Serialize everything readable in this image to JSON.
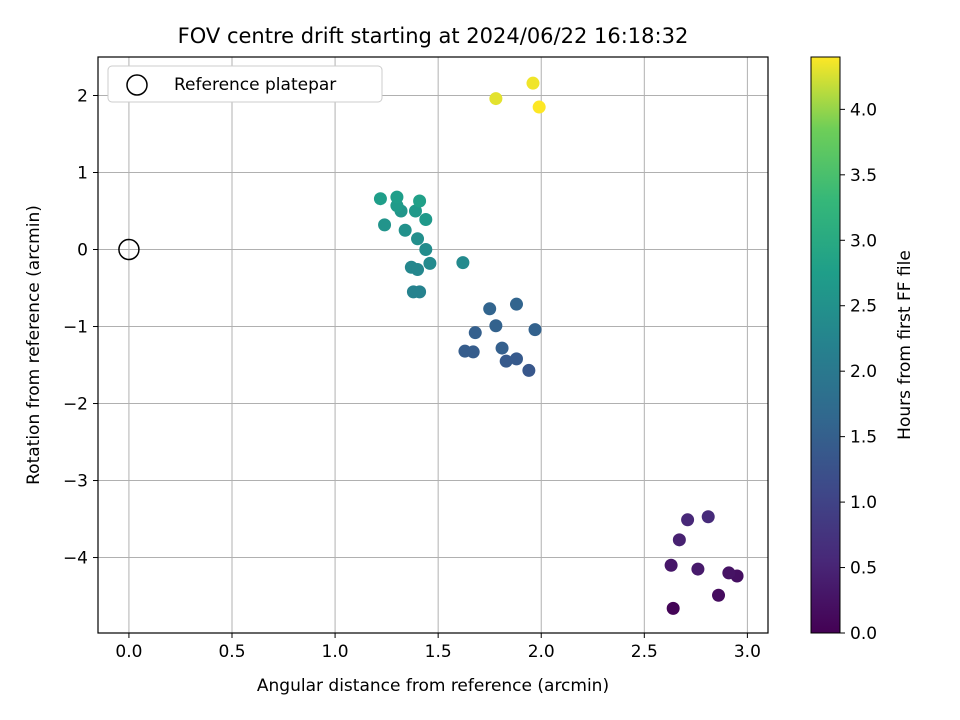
{
  "chart_data": {
    "type": "scatter",
    "title": "FOV centre drift starting at 2024/06/22 16:18:32",
    "xlabel": "Angular distance from reference (arcmin)",
    "ylabel": "Rotation from reference (arcmin)",
    "xlim": [
      -0.15,
      3.1
    ],
    "ylim": [
      -4.98,
      2.5
    ],
    "xticks": [
      0.0,
      0.5,
      1.0,
      1.5,
      2.0,
      2.5,
      3.0
    ],
    "xtick_labels": [
      "0.0",
      "0.5",
      "1.0",
      "1.5",
      "2.0",
      "2.5",
      "3.0"
    ],
    "yticks": [
      2,
      1,
      0,
      -1,
      -2,
      -3,
      -4
    ],
    "ytick_labels": [
      "2",
      "1",
      "0",
      "−1",
      "−2",
      "−3",
      "−4"
    ],
    "grid": true,
    "legend": {
      "placement": "upper-left",
      "entries": [
        "Reference platepar"
      ]
    },
    "reference_point": {
      "x": 0,
      "y": 0,
      "label": "Reference platepar"
    },
    "colorbar": {
      "label": "Hours from first FF file",
      "colormap": "viridis",
      "range": [
        0.0,
        4.4
      ],
      "ticks": [
        0.0,
        0.5,
        1.0,
        1.5,
        2.0,
        2.5,
        3.0,
        3.5,
        4.0
      ],
      "tick_labels": [
        "0.0",
        "0.5",
        "1.0",
        "1.5",
        "2.0",
        "2.5",
        "3.0",
        "3.5",
        "4.0"
      ]
    },
    "points": [
      {
        "x": 2.64,
        "y": -4.66,
        "hours": 0.05
      },
      {
        "x": 2.86,
        "y": -4.49,
        "hours": 0.15
      },
      {
        "x": 2.95,
        "y": -4.24,
        "hours": 0.2
      },
      {
        "x": 2.91,
        "y": -4.2,
        "hours": 0.25
      },
      {
        "x": 2.63,
        "y": -4.1,
        "hours": 0.3
      },
      {
        "x": 2.76,
        "y": -4.15,
        "hours": 0.35
      },
      {
        "x": 2.67,
        "y": -3.77,
        "hours": 0.45
      },
      {
        "x": 2.71,
        "y": -3.51,
        "hours": 0.55
      },
      {
        "x": 2.81,
        "y": -3.47,
        "hours": 0.6
      },
      {
        "x": 1.94,
        "y": -1.57,
        "hours": 1.35
      },
      {
        "x": 1.83,
        "y": -1.45,
        "hours": 1.4
      },
      {
        "x": 1.88,
        "y": -1.42,
        "hours": 1.4
      },
      {
        "x": 1.63,
        "y": -1.32,
        "hours": 1.45
      },
      {
        "x": 1.67,
        "y": -1.33,
        "hours": 1.45
      },
      {
        "x": 1.81,
        "y": -1.28,
        "hours": 1.5
      },
      {
        "x": 1.68,
        "y": -1.08,
        "hours": 1.5
      },
      {
        "x": 1.78,
        "y": -0.99,
        "hours": 1.55
      },
      {
        "x": 1.97,
        "y": -1.04,
        "hours": 1.55
      },
      {
        "x": 1.75,
        "y": -0.77,
        "hours": 1.6
      },
      {
        "x": 1.88,
        "y": -0.71,
        "hours": 1.6
      },
      {
        "x": 1.38,
        "y": -0.55,
        "hours": 2.2
      },
      {
        "x": 1.41,
        "y": -0.55,
        "hours": 2.2
      },
      {
        "x": 1.37,
        "y": -0.23,
        "hours": 2.3
      },
      {
        "x": 1.4,
        "y": -0.26,
        "hours": 2.3
      },
      {
        "x": 1.46,
        "y": -0.18,
        "hours": 2.35
      },
      {
        "x": 1.62,
        "y": -0.17,
        "hours": 2.35
      },
      {
        "x": 1.44,
        "y": 0.0,
        "hours": 2.4
      },
      {
        "x": 1.4,
        "y": 0.14,
        "hours": 2.45
      },
      {
        "x": 1.34,
        "y": 0.25,
        "hours": 2.5
      },
      {
        "x": 1.24,
        "y": 0.32,
        "hours": 2.55
      },
      {
        "x": 1.32,
        "y": 0.5,
        "hours": 2.6
      },
      {
        "x": 1.39,
        "y": 0.5,
        "hours": 2.65
      },
      {
        "x": 1.44,
        "y": 0.39,
        "hours": 2.65
      },
      {
        "x": 1.3,
        "y": 0.57,
        "hours": 2.7
      },
      {
        "x": 1.22,
        "y": 0.66,
        "hours": 2.75
      },
      {
        "x": 1.3,
        "y": 0.68,
        "hours": 2.75
      },
      {
        "x": 1.41,
        "y": 0.63,
        "hours": 2.8
      },
      {
        "x": 1.78,
        "y": 1.96,
        "hours": 4.3
      },
      {
        "x": 1.96,
        "y": 2.16,
        "hours": 4.35
      },
      {
        "x": 1.99,
        "y": 1.85,
        "hours": 4.4
      }
    ]
  }
}
